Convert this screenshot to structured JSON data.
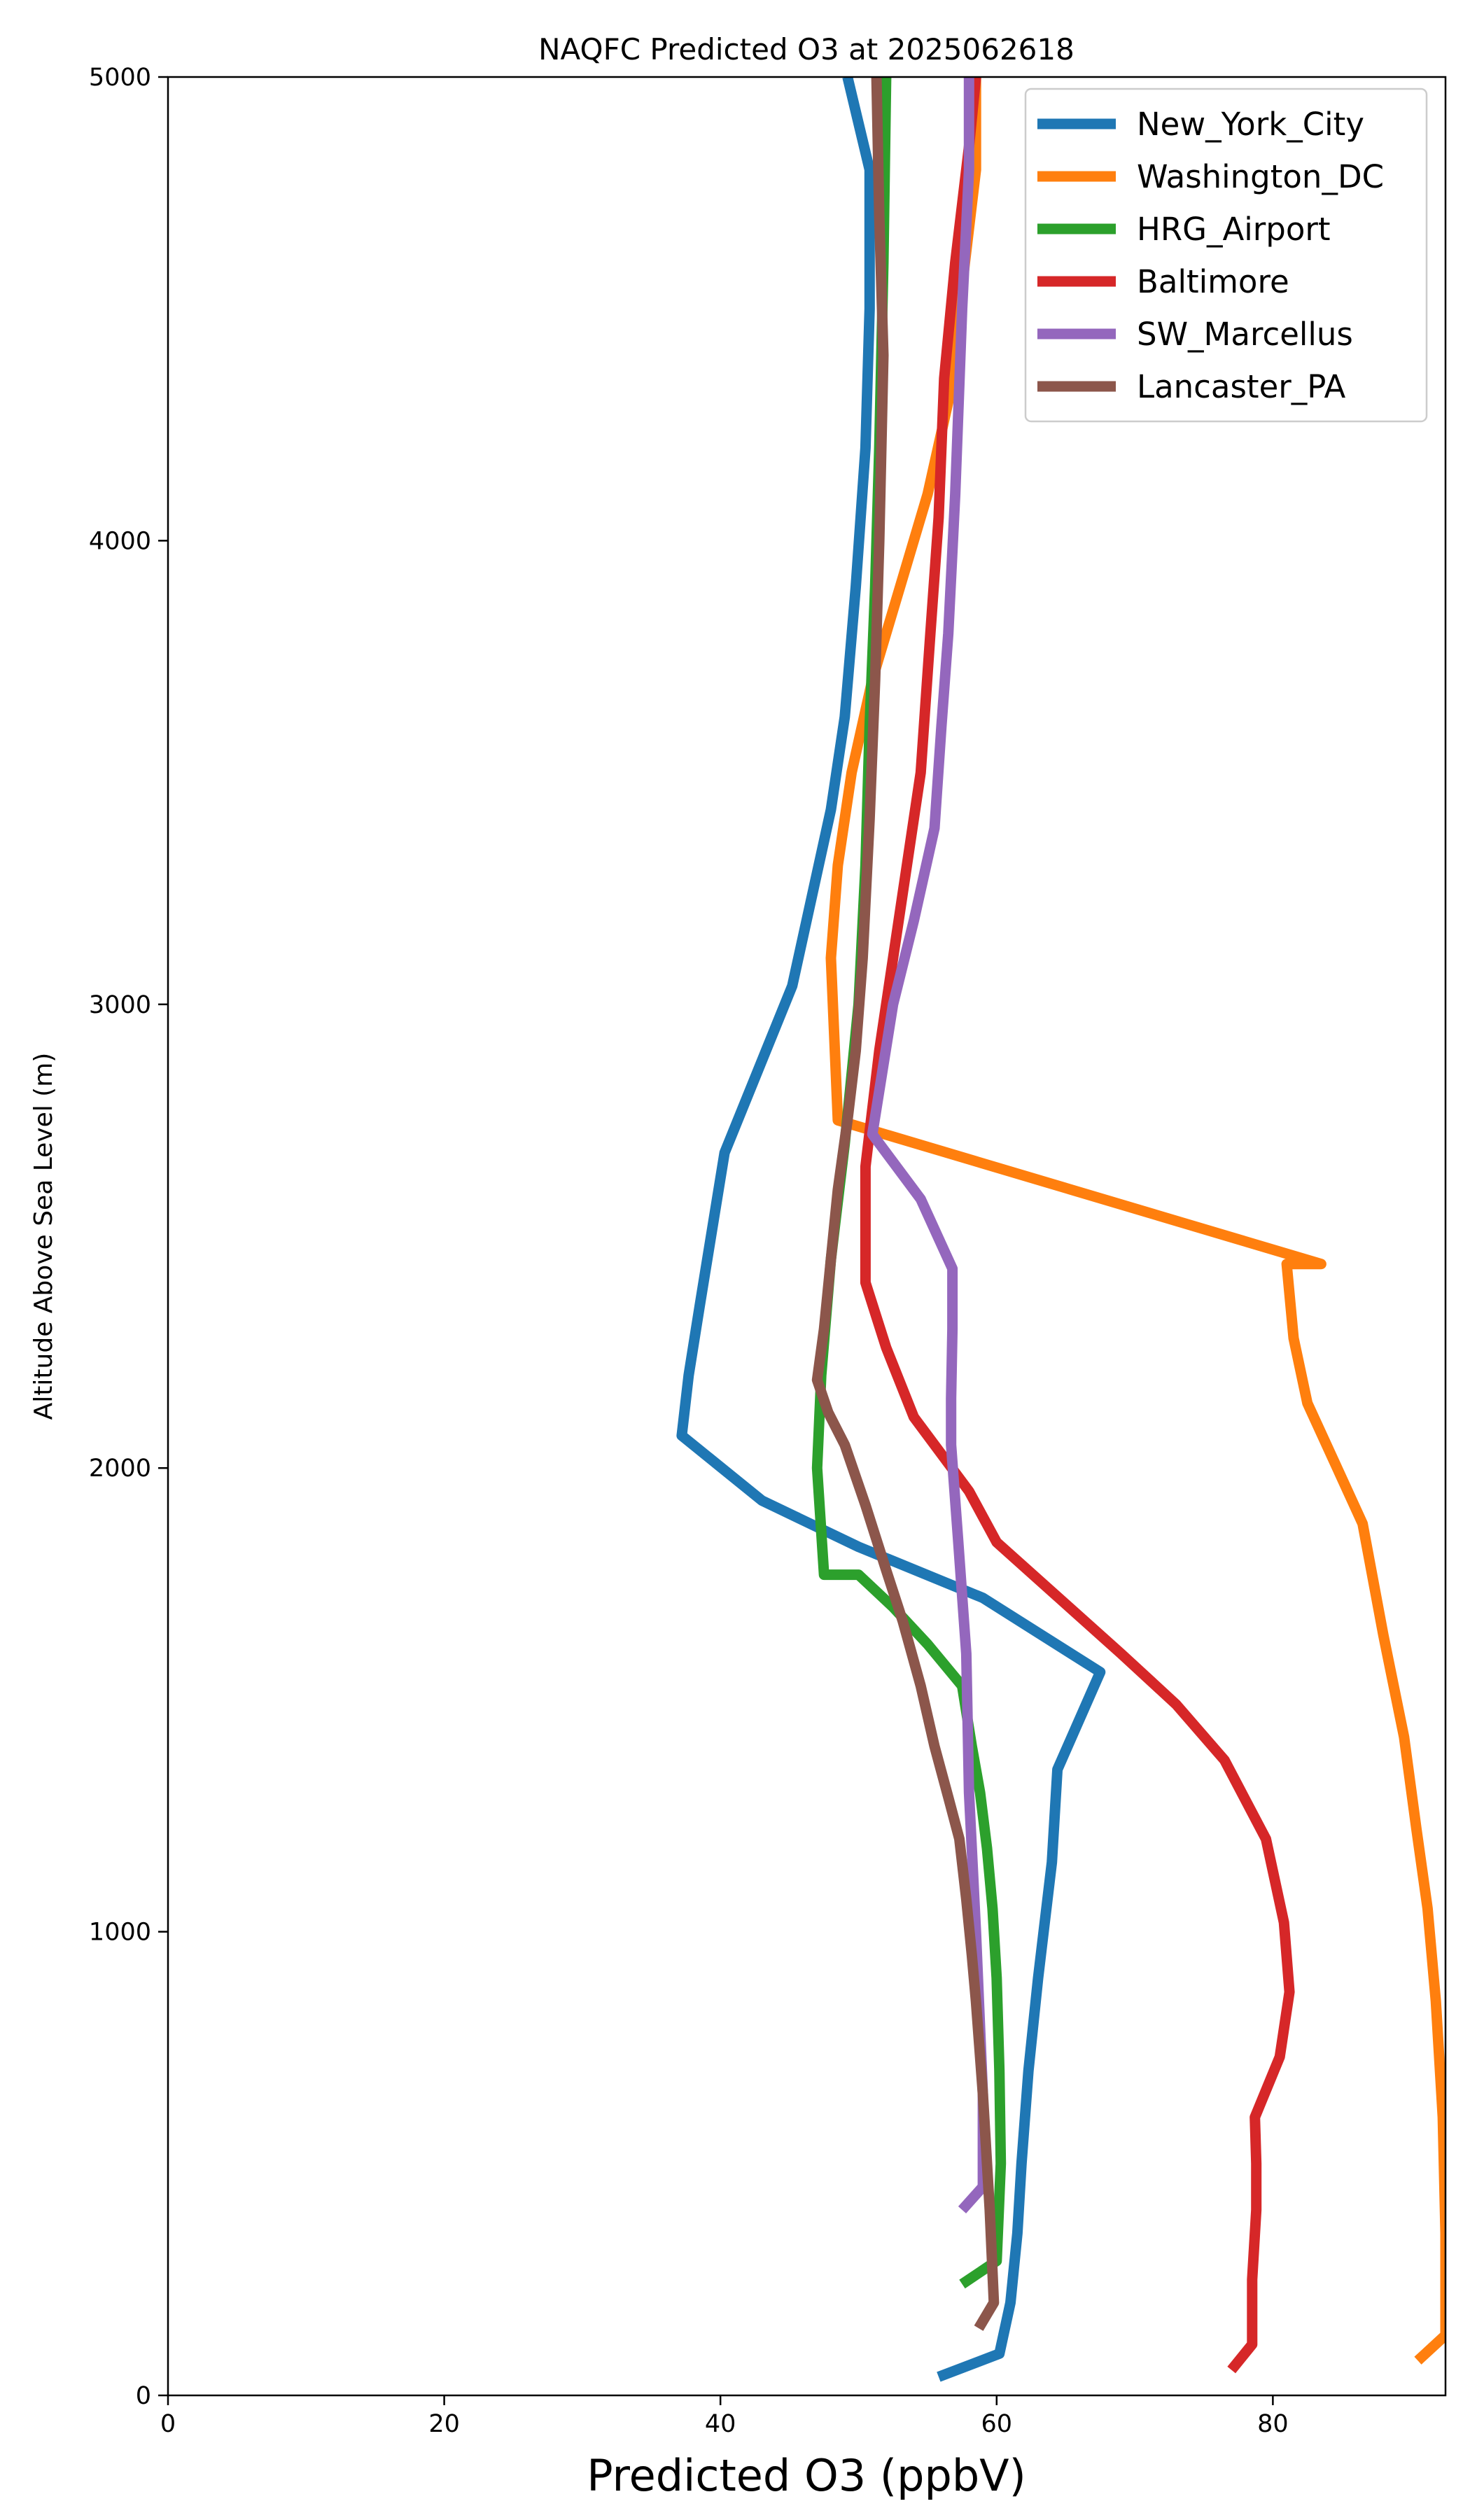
{
  "chart_data": {
    "type": "line",
    "title": "NAQFC Predicted O3 at 2025062618",
    "xlabel": "Predicted O3 (ppbV)",
    "ylabel": "Altitude Above Sea Level (m)",
    "xlim": [
      0,
      92.5
    ],
    "ylim": [
      0,
      5000
    ],
    "xticks": [
      0,
      20,
      40,
      60,
      80
    ],
    "yticks": [
      0,
      1000,
      2000,
      3000,
      4000,
      5000
    ],
    "grid": false,
    "legend_position": "top-right",
    "series": [
      {
        "name": "New_York_City",
        "color": "#1f77b4",
        "x": [
          55.8,
          60.2,
          61.0,
          61.5,
          61.8,
          62.3,
          63.0,
          64.0,
          64.4,
          67.5,
          59.0,
          50.0,
          43.0,
          37.2,
          37.7,
          38.5,
          40.3,
          45.2,
          48.0,
          49.0,
          49.8,
          50.5,
          50.8,
          50.8,
          49.2
        ],
        "y": [
          40,
          90,
          200,
          350,
          500,
          700,
          900,
          1150,
          1350,
          1560,
          1720,
          1830,
          1930,
          2070,
          2200,
          2350,
          2680,
          3040,
          3420,
          3620,
          3900,
          4200,
          4500,
          4800,
          5000
        ]
      },
      {
        "name": "Washington_DC",
        "color": "#ff7f0e",
        "x": [
          90.5,
          92.5,
          92.5,
          92.3,
          91.8,
          91.2,
          90.4,
          89.5,
          88.0,
          86.5,
          84.5,
          82.5,
          81.5,
          81.0,
          83.5,
          48.5,
          48.0,
          48.5,
          49.5,
          51.0,
          53.0,
          55.0,
          56.5,
          57.5,
          58.5,
          58.5
        ],
        "y": [
          75,
          130,
          350,
          600,
          850,
          1050,
          1220,
          1420,
          1640,
          1880,
          2010,
          2140,
          2280,
          2440,
          2440,
          2750,
          3100,
          3300,
          3500,
          3700,
          3900,
          4100,
          4300,
          4550,
          4800,
          5000
        ]
      },
      {
        "name": "HRG_Airport",
        "color": "#2ca02c",
        "x": [
          57.5,
          60.0,
          60.3,
          60.2,
          60.0,
          59.7,
          59.3,
          58.8,
          58.2,
          57.5,
          55.0,
          52.5,
          50.0,
          47.5,
          47.0,
          47.3,
          48.0,
          49.0,
          50.0,
          50.5,
          50.8,
          51.2,
          51.5,
          51.8,
          52.0
        ],
        "y": [
          240,
          290,
          500,
          700,
          900,
          1050,
          1180,
          1300,
          1400,
          1530,
          1620,
          1700,
          1770,
          1770,
          2000,
          2200,
          2450,
          2700,
          3000,
          3300,
          3600,
          3900,
          4200,
          4600,
          5000
        ]
      },
      {
        "name": "Baltimore",
        "color": "#d62728",
        "x": [
          77.0,
          78.5,
          78.5,
          78.8,
          78.8,
          78.7,
          80.5,
          81.2,
          80.8,
          79.5,
          76.5,
          73.0,
          69.0,
          64.5,
          60.0,
          58.0,
          54.0,
          52.0,
          50.5,
          50.5,
          51.5,
          53.0,
          54.5,
          55.2,
          55.8,
          56.2,
          57.0,
          58.0,
          58.5
        ],
        "y": [
          55,
          110,
          250,
          400,
          500,
          600,
          730,
          870,
          1020,
          1200,
          1370,
          1490,
          1600,
          1720,
          1840,
          1950,
          2110,
          2260,
          2400,
          2650,
          2900,
          3200,
          3500,
          3800,
          4050,
          4350,
          4600,
          4850,
          5000
        ]
      },
      {
        "name": "SW_Marcellus",
        "color": "#9467bd",
        "x": [
          57.5,
          59.0,
          59.0,
          58.5,
          58.0,
          57.8,
          57.2,
          56.7,
          56.7,
          56.8,
          56.8,
          54.5,
          51.0,
          52.5,
          54.0,
          55.5,
          56.0,
          56.5,
          57.0,
          57.5,
          58.0,
          58.0
        ],
        "y": [
          400,
          450,
          650,
          1000,
          1300,
          1600,
          1850,
          2050,
          2150,
          2300,
          2430,
          2580,
          2720,
          3000,
          3180,
          3380,
          3600,
          3800,
          4100,
          4500,
          4800,
          5000
        ]
      },
      {
        "name": "Lancaster_PA",
        "color": "#8c564b",
        "x": [
          58.7,
          59.8,
          59.5,
          59.0,
          58.5,
          58.2,
          57.8,
          57.3,
          56.5,
          55.5,
          54.5,
          53.2,
          52.0,
          50.5,
          49.0,
          47.8,
          47.0,
          47.5,
          48.0,
          48.5,
          49.2,
          49.8,
          50.3,
          50.8,
          51.2,
          51.5,
          51.8,
          51.5,
          51.3
        ],
        "y": [
          145,
          200,
          400,
          650,
          850,
          950,
          1070,
          1200,
          1290,
          1400,
          1530,
          1670,
          1780,
          1920,
          2050,
          2120,
          2190,
          2300,
          2450,
          2600,
          2750,
          2900,
          3100,
          3400,
          3700,
          4000,
          4400,
          4700,
          5000
        ]
      }
    ]
  }
}
